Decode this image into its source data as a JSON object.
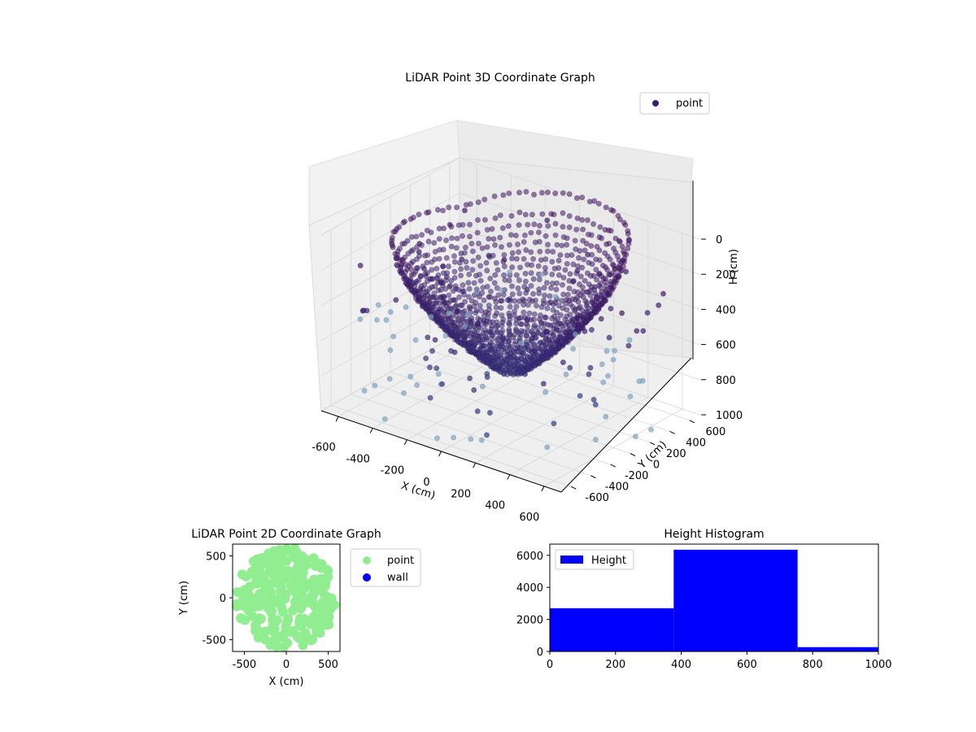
{
  "chart_data": [
    {
      "type": "scatter",
      "projection": "3d",
      "title": "LiDAR Point 3D Coordinate Graph",
      "xlabel": "X (cm)",
      "ylabel": "Y (cm)",
      "zlabel": "H (cm)",
      "xlim": [
        -700,
        700
      ],
      "ylim": [
        -700,
        700
      ],
      "zlim": [
        0,
        1000
      ],
      "z_inverted": true,
      "x_ticks": [
        "-600",
        "-400",
        "-200",
        "0",
        "200",
        "400",
        "600"
      ],
      "y_ticks": [
        "-600",
        "-400",
        "-200",
        "0",
        "200",
        "400",
        "600"
      ],
      "z_ticks": [
        "0",
        "200",
        "400",
        "600",
        "800",
        "1000"
      ],
      "grid": true,
      "legend": {
        "placement": "top-right",
        "entries": [
          "point"
        ]
      },
      "series": [
        {
          "name": "point",
          "color_scale": "viridis-by-height",
          "marker_color": "#3b1e6e",
          "description": "dense bowl-shaped surface of roughly 9000 points; radius ~600 cm at H 100-300 cm, narrowing with depth; sparse scattered outliers",
          "bowl_rim_radius_cm": 600,
          "rim_height_cm": [
            100,
            350
          ],
          "floor_height_cm": [
            650,
            750
          ]
        }
      ]
    },
    {
      "type": "scatter",
      "title": "LiDAR Point 2D Coordinate Graph",
      "xlabel": "X (cm)",
      "ylabel": "Y (cm)",
      "xlim": [
        -640,
        640
      ],
      "ylim": [
        -640,
        640
      ],
      "x_ticks": [
        "-500",
        "0",
        "500"
      ],
      "y_ticks": [
        "-500",
        "0",
        "500"
      ],
      "legend": {
        "placement": "outside-right",
        "entries": [
          "point",
          "wall"
        ]
      },
      "series": [
        {
          "name": "point",
          "color": "#90ee90",
          "shape": "filled disc, radius ~600 cm centred at origin"
        },
        {
          "name": "wall",
          "color": "#0000ff",
          "points": []
        }
      ]
    },
    {
      "type": "bar",
      "subtype": "histogram",
      "title": "Height Histogram",
      "xlim": [
        0,
        1000
      ],
      "ylim": [
        0,
        6700
      ],
      "x_ticks": [
        "0",
        "200",
        "400",
        "600",
        "800",
        "1000"
      ],
      "y_ticks": [
        "0",
        "2000",
        "4000",
        "6000"
      ],
      "legend": {
        "placement": "top-left",
        "entries": [
          "Height"
        ]
      },
      "color": "#0000ff",
      "bins": [
        {
          "start": 0,
          "end": 377,
          "count": 2700
        },
        {
          "start": 377,
          "end": 754,
          "count": 6350
        },
        {
          "start": 754,
          "end": 1000,
          "count": 270
        }
      ]
    }
  ]
}
